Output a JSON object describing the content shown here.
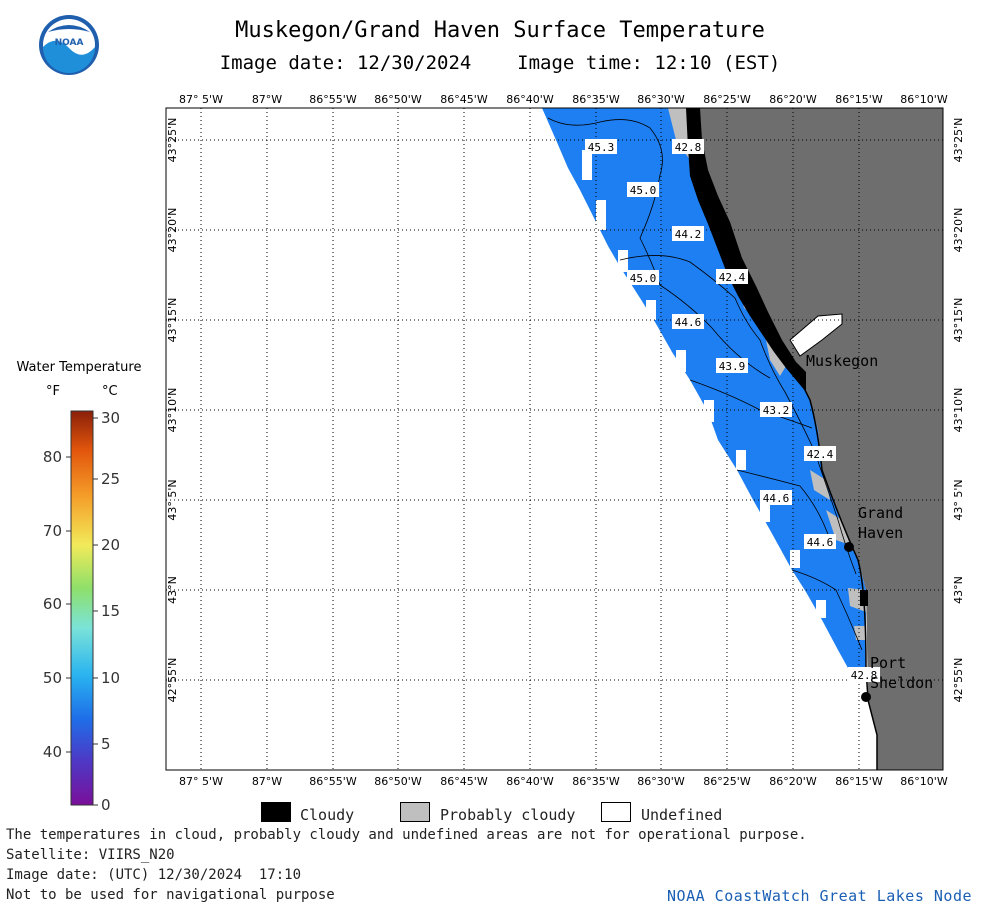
{
  "header": {
    "title": "Muskegon/Grand Haven Surface Temperature",
    "date_label": "Image date: 12/30/2024",
    "time_label": "Image time: 12:10 (EST)"
  },
  "logo": {
    "name": "NOAA",
    "icon": "noaa-logo-icon"
  },
  "map": {
    "lon_ticks": [
      "87° 5'W",
      "87°W",
      "86°55'W",
      "86°50'W",
      "86°45'W",
      "86°40'W",
      "86°35'W",
      "86°30'W",
      "86°25'W",
      "86°20'W",
      "86°15'W",
      "86°10'W"
    ],
    "lat_ticks": [
      "43°25'N",
      "43°20'N",
      "43°15'N",
      "43°10'N",
      "43° 5'N",
      "43°N",
      "42°55'N"
    ],
    "colors": {
      "water": "#1e7ff2",
      "land": "#6e6e6e",
      "cloudy": "#000000",
      "probably_cloudy": "#bfbfbf",
      "undefined": "#ffffff"
    },
    "temperature_labels": [
      "45.3",
      "42.8",
      "45.0",
      "44.2",
      "45.0",
      "42.4",
      "44.6",
      "43.9",
      "43.2",
      "42.4",
      "44.6",
      "44.6",
      "42.8"
    ],
    "places": {
      "muskegon": "Muskegon",
      "grand_haven_line1": "Grand",
      "grand_haven_line2": "Haven",
      "port_sheldon_line1": "Port",
      "port_sheldon_line2": "Sheldon"
    }
  },
  "legend_scale": {
    "title": "Water Temperature",
    "unit_f": "°F",
    "unit_c": "°C",
    "f_ticks": [
      "80",
      "70",
      "60",
      "50",
      "40"
    ],
    "c_ticks": [
      "30",
      "25",
      "20",
      "15",
      "10",
      "5",
      "0"
    ]
  },
  "legend_boxes": {
    "cloudy": "Cloudy",
    "probably_cloudy": "Probably cloudy",
    "undefined": "Undefined"
  },
  "footer": {
    "note": "The temperatures in cloud, probably cloudy and undefined areas are not for operational purpose.",
    "satellite": "Satellite: VIIRS_N20",
    "utc_date": "Image date: (UTC) 12/30/2024  17:10",
    "nav_warning": "Not to be used for navigational purpose",
    "credit": "NOAA CoastWatch Great Lakes Node"
  }
}
